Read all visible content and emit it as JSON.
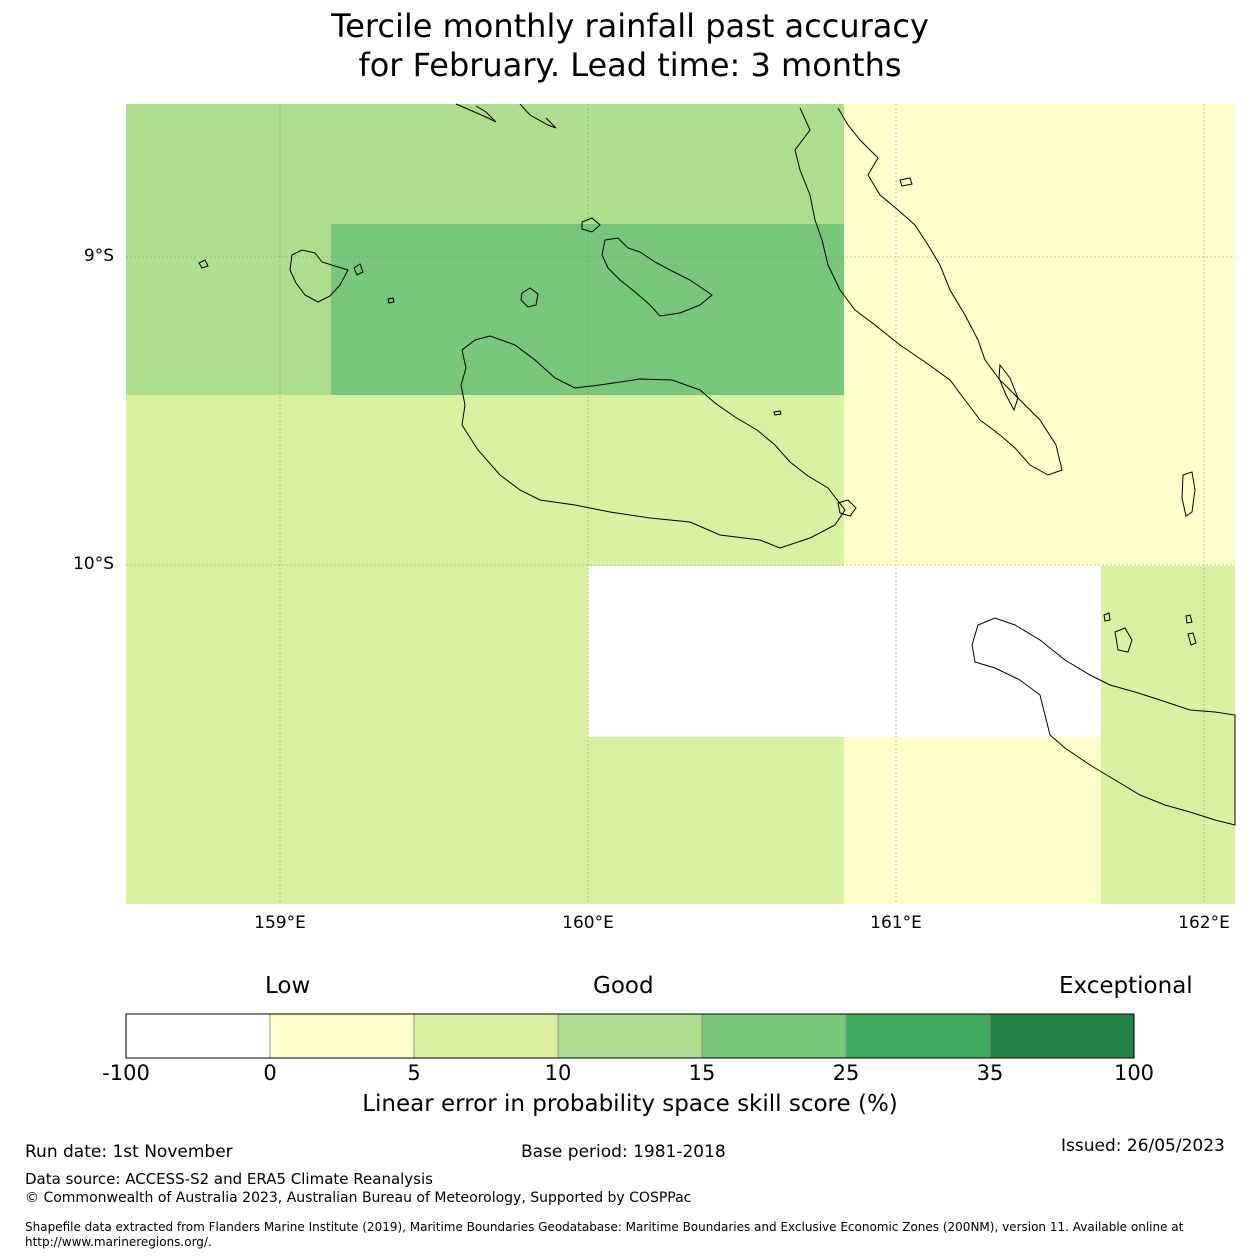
{
  "title": {
    "line1": "Tercile monthly rainfall past accuracy",
    "line2": "for February. Lead time: 3 months"
  },
  "map": {
    "lat_labels": [
      "9°S",
      "10°S"
    ],
    "lon_labels": [
      "159°E",
      "160°E",
      "161°E",
      "162°E"
    ],
    "colors": {
      "white": "#ffffff",
      "cat_0_5": "#ffffcc",
      "cat_5_10": "#d9f0a3",
      "cat_10_15": "#addd8e",
      "cat_15_25": "#78c679",
      "cat_25_35": "#41ab5d",
      "cat_35_100": "#238443"
    }
  },
  "legend": {
    "categories": [
      "Low",
      "Good",
      "Exceptional"
    ],
    "ticks": [
      "-100",
      "0",
      "5",
      "10",
      "15",
      "25",
      "35",
      "100"
    ],
    "colors": [
      "#ffffff",
      "#ffffcc",
      "#d9f0a3",
      "#addd8e",
      "#78c679",
      "#41ab5d",
      "#238443"
    ],
    "label": "Linear error in probability space skill score (%)"
  },
  "footer": {
    "run_date": "Run date: 1st November",
    "base_period": "Base period: 1981-2018",
    "issued": "Issued: 26/05/2023",
    "data_source": "Data source: ACCESS-S2 and ERA5 Climate Reanalysis",
    "copyright": "© Commonwealth of Australia 2023, Australian Bureau of Meteorology, Supported by COSPPac",
    "shapefile": "Shapefile data extracted from Flanders Marine Institute (2019), Maritime Boundaries Geodatabase: Maritime Boundaries and Exclusive Economic Zones (200NM), version 11. Available online at http://www.marineregions.org/."
  }
}
